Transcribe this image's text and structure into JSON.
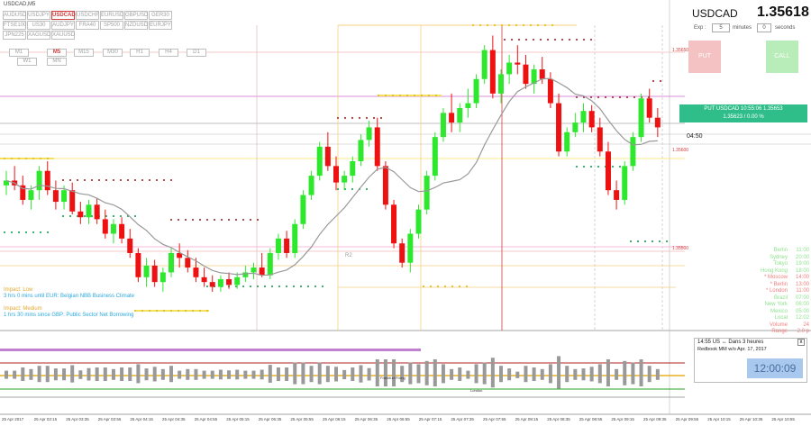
{
  "window": {
    "title": "USDCAD,M5"
  },
  "symbols": [
    "AUDUSD",
    "USDJPY",
    "USDCAD",
    "USDCHF",
    "EURUSD",
    "GBPUSD",
    "GER30",
    "FTSE100",
    "US30",
    "AUDJPY",
    "FRA40",
    "SP500",
    "NZDUSD",
    "EURJPY",
    "JPN225",
    "XAGUSD",
    "XAUUSD"
  ],
  "active_symbol": "USDCAD",
  "timeframes": [
    "M1",
    "M5",
    "M15",
    "M30",
    "H1",
    "H4",
    "D1",
    "W1",
    "MN"
  ],
  "active_timeframe": "M5",
  "trade_panel": {
    "symbol": "USDCAD",
    "price": "1.35618",
    "exp_label": "Exp :",
    "minutes_value": "5",
    "minutes_label": "minutes",
    "seconds_value": "0",
    "seconds_label": "seconds",
    "put_label": "PUT",
    "call_label": "CALL",
    "position_line1": "PUT USDCAD 10:55:06 1.35653",
    "position_line2": "1.35623 / 0.00 %",
    "countdown": "04:50"
  },
  "price_labels": {
    "top": "1.35650",
    "mid": "1.35600",
    "low": "1.35500"
  },
  "r2_label": "R2",
  "impact": {
    "low_title": "Impact: Low",
    "low_text": "3 hrs 0 mins until EUR: Belgian NBB Business Climate",
    "medium_title": "Impact: Medium",
    "medium_text": "1 hrs 30 mins since GBP: Public Sector Net Borrowing"
  },
  "sessions": [
    {
      "name": "Berlin",
      "time": "11:00"
    },
    {
      "name": "Sydney",
      "time": "20:00"
    },
    {
      "name": "Tokyo",
      "time": "19:00"
    },
    {
      "name": "Hong Kong",
      "time": "18:00"
    },
    {
      "name": "* Moscow",
      "time": "14:00"
    },
    {
      "name": "* Berlin",
      "time": "13:00"
    },
    {
      "name": "* London",
      "time": "11:00"
    },
    {
      "name": "Brazil",
      "time": "07:00"
    },
    {
      "name": "New York",
      "time": "06:00"
    },
    {
      "name": "Mexico",
      "time": "05:00"
    },
    {
      "name": "Local",
      "time": "12:02"
    },
    {
      "name": "Volume",
      "time": "24"
    },
    {
      "name": "Range",
      "time": "2.0 p"
    }
  ],
  "news": {
    "time": "14:55",
    "currency": "US",
    "arrow": "↔",
    "when": "Dans 3 heures",
    "event": "Redbook MM w/o Apr. 17, 2017",
    "clock": "12:00:09",
    "close": "x"
  },
  "lower_labels": {
    "label1": "Frankfurt Fixing",
    "label2": "London"
  },
  "time_axis": [
    "25 Apr 2017",
    "25 Apr 03:15",
    "25 Apr 03:35",
    "25 Apr 03:55",
    "25 Apr 04:15",
    "25 Apr 04:35",
    "25 Apr 04:55",
    "25 Apr 05:15",
    "25 Apr 05:35",
    "25 Apr 05:55",
    "25 Apr 06:15",
    "25 Apr 06:35",
    "25 Apr 06:55",
    "25 Apr 07:15",
    "25 Apr 07:35",
    "25 Apr 07:55",
    "25 Apr 08:15",
    "25 Apr 08:35",
    "25 Apr 08:55",
    "25 Apr 09:15",
    "25 Apr 09:35",
    "25 Apr 09:55",
    "25 Apr 10:15",
    "25 Apr 10:35",
    "25 Apr 10:55"
  ],
  "colors": {
    "bull": "#2ee82e",
    "bear": "#ee1111",
    "put": "#f4c2c2",
    "call": "#b8ecb8",
    "position": "#2fbe8a",
    "ma": "#999999"
  },
  "candles": [
    [
      1.35545,
      1.3556,
      1.35535,
      1.3555
    ],
    [
      1.3555,
      1.35565,
      1.3554,
      1.35545
    ],
    [
      1.35545,
      1.35555,
      1.35525,
      1.3553
    ],
    [
      1.3553,
      1.35545,
      1.3552,
      1.3554
    ],
    [
      1.3554,
      1.35565,
      1.3553,
      1.3556
    ],
    [
      1.3556,
      1.3557,
      1.35535,
      1.3554
    ],
    [
      1.3554,
      1.3555,
      1.3552,
      1.35528
    ],
    [
      1.35528,
      1.35545,
      1.3552,
      1.3554
    ],
    [
      1.3554,
      1.35548,
      1.35515,
      1.35518
    ],
    [
      1.35518,
      1.35528,
      1.35505,
      1.35512
    ],
    [
      1.35512,
      1.3553,
      1.35505,
      1.35525
    ],
    [
      1.35525,
      1.35532,
      1.35505,
      1.3551
    ],
    [
      1.3551,
      1.3552,
      1.3549,
      1.35495
    ],
    [
      1.35495,
      1.3551,
      1.35485,
      1.35505
    ],
    [
      1.35505,
      1.35512,
      1.35485,
      1.3549
    ],
    [
      1.3549,
      1.355,
      1.3547,
      1.35475
    ],
    [
      1.35475,
      1.3548,
      1.35445,
      1.3545
    ],
    [
      1.3545,
      1.3547,
      1.3544,
      1.35462
    ],
    [
      1.35462,
      1.35468,
      1.3544,
      1.35445
    ],
    [
      1.35445,
      1.3546,
      1.35435,
      1.35455
    ],
    [
      1.35455,
      1.3548,
      1.3545,
      1.35475
    ],
    [
      1.35475,
      1.35485,
      1.3546,
      1.3547
    ],
    [
      1.3547,
      1.35478,
      1.35455,
      1.3546
    ],
    [
      1.3546,
      1.3547,
      1.35445,
      1.3545
    ],
    [
      1.3545,
      1.3546,
      1.3544,
      1.35445
    ],
    [
      1.35445,
      1.35452,
      1.35435,
      1.3544
    ],
    [
      1.3544,
      1.35452,
      1.35435,
      1.35448
    ],
    [
      1.35448,
      1.35455,
      1.35438,
      1.35442
    ],
    [
      1.35442,
      1.35455,
      1.35438,
      1.3545
    ],
    [
      1.3545,
      1.35462,
      1.35445,
      1.35455
    ],
    [
      1.35455,
      1.35465,
      1.35448,
      1.3546
    ],
    [
      1.3546,
      1.35475,
      1.3545,
      1.35452
    ],
    [
      1.35452,
      1.3548,
      1.35448,
      1.35475
    ],
    [
      1.35475,
      1.35495,
      1.35468,
      1.3549
    ],
    [
      1.3549,
      1.35498,
      1.3547,
      1.35475
    ],
    [
      1.35475,
      1.3551,
      1.3547,
      1.35505
    ],
    [
      1.35505,
      1.3554,
      1.355,
      1.35535
    ],
    [
      1.35535,
      1.3556,
      1.3553,
      1.35555
    ],
    [
      1.35555,
      1.3559,
      1.3555,
      1.35585
    ],
    [
      1.35585,
      1.356,
      1.3556,
      1.35565
    ],
    [
      1.35565,
      1.35575,
      1.3554,
      1.35548
    ],
    [
      1.35548,
      1.3556,
      1.3554,
      1.35555
    ],
    [
      1.35555,
      1.35575,
      1.35548,
      1.3557
    ],
    [
      1.3557,
      1.35598,
      1.35565,
      1.35592
    ],
    [
      1.35592,
      1.35612,
      1.35585,
      1.35605
    ],
    [
      1.35605,
      1.35615,
      1.3556,
      1.35565
    ],
    [
      1.35565,
      1.3557,
      1.3552,
      1.35525
    ],
    [
      1.35525,
      1.3553,
      1.3548,
      1.35485
    ],
    [
      1.35485,
      1.3549,
      1.3546,
      1.35465
    ],
    [
      1.35465,
      1.355,
      1.35455,
      1.35495
    ],
    [
      1.35495,
      1.35525,
      1.3549,
      1.3552
    ],
    [
      1.3552,
      1.3556,
      1.35515,
      1.35555
    ],
    [
      1.35555,
      1.356,
      1.3555,
      1.35595
    ],
    [
      1.35595,
      1.35625,
      1.3559,
      1.3562
    ],
    [
      1.3562,
      1.3564,
      1.356,
      1.3561
    ],
    [
      1.3561,
      1.3563,
      1.356,
      1.35625
    ],
    [
      1.35625,
      1.35645,
      1.35615,
      1.3563
    ],
    [
      1.3563,
      1.3566,
      1.35625,
      1.35655
    ],
    [
      1.35655,
      1.3569,
      1.3565,
      1.35685
    ],
    [
      1.35685,
      1.357,
      1.35635,
      1.3564
    ],
    [
      1.3564,
      1.35665,
      1.3563,
      1.3566
    ],
    [
      1.3566,
      1.3568,
      1.3565,
      1.35672
    ],
    [
      1.35672,
      1.3569,
      1.3566,
      1.3567
    ],
    [
      1.3567,
      1.3568,
      1.35645,
      1.3565
    ],
    [
      1.3565,
      1.3567,
      1.3564,
      1.35665
    ],
    [
      1.35665,
      1.35678,
      1.3565,
      1.35655
    ],
    [
      1.35655,
      1.35662,
      1.35625,
      1.3563
    ],
    [
      1.3563,
      1.3564,
      1.35575,
      1.3558
    ],
    [
      1.3558,
      1.35605,
      1.35575,
      1.356
    ],
    [
      1.356,
      1.3562,
      1.35595,
      1.3561
    ],
    [
      1.3561,
      1.3563,
      1.356,
      1.35622
    ],
    [
      1.35622,
      1.35628,
      1.356,
      1.35605
    ],
    [
      1.35605,
      1.35615,
      1.35575,
      1.3558
    ],
    [
      1.3558,
      1.3559,
      1.35535,
      1.3554
    ],
    [
      1.3554,
      1.3555,
      1.3552,
      1.3553
    ],
    [
      1.3553,
      1.3557,
      1.35525,
      1.35565
    ],
    [
      1.35565,
      1.356,
      1.3556,
      1.35595
    ],
    [
      1.35595,
      1.3564,
      1.3559,
      1.35635
    ],
    [
      1.35635,
      1.35645,
      1.3561,
      1.35615
    ],
    [
      1.35615,
      1.35625,
      1.35595,
      1.35605
    ]
  ]
}
